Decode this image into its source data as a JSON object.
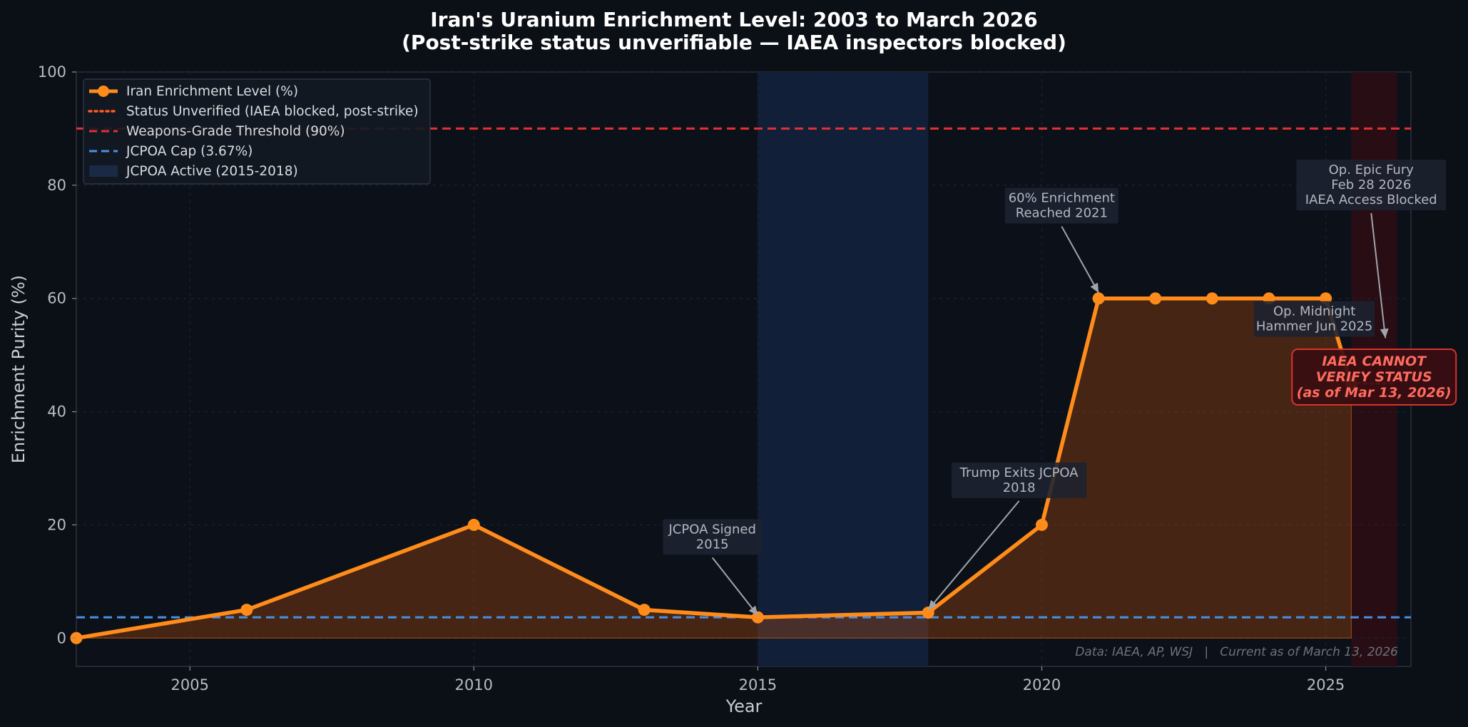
{
  "chart_data": {
    "type": "line",
    "title_line1": "Iran's Uranium Enrichment Level: 2003 to March 2026",
    "title_line2": "(Post-strike status unverifiable — IAEA inspectors blocked)",
    "xlabel": "Year",
    "ylabel": "Enrichment Purity (%)",
    "xlim": [
      2003,
      2026.5
    ],
    "ylim": [
      -5,
      100
    ],
    "x_ticks": [
      2005,
      2010,
      2015,
      2020,
      2025
    ],
    "y_ticks": [
      0,
      20,
      40,
      60,
      80,
      100
    ],
    "grid": true,
    "legend_position": "top-left",
    "series": [
      {
        "name": "Iran Enrichment Level (%)",
        "color": "#ff8c1a",
        "x": [
          2003,
          2006,
          2010,
          2013,
          2015,
          2018,
          2020,
          2021,
          2022,
          2023,
          2024,
          2025,
          2025.45
        ],
        "y": [
          0,
          5,
          20,
          5,
          3.67,
          4.5,
          20,
          60,
          60,
          60,
          60,
          60,
          45
        ]
      },
      {
        "name": "Status Unverified (IAEA blocked, post-strike)",
        "color": "#ff5a1f",
        "x": [
          2025.45,
          2026.2
        ],
        "y": [
          45,
          45
        ]
      }
    ],
    "reference_lines": [
      {
        "name": "Weapons-Grade Threshold (90%)",
        "y": 90,
        "color": "#e03131"
      },
      {
        "name": "JCPOA Cap (3.67%)",
        "y": 3.67,
        "color": "#4a90e2"
      }
    ],
    "shaded_regions": [
      {
        "name": "JCPOA Active (2015-2018)",
        "x_start": 2015,
        "x_end": 2018,
        "color": "#12213a"
      },
      {
        "name": "",
        "x_start": 2025.45,
        "x_end": 2026.25,
        "color": "#2a0e14"
      }
    ],
    "legend": [
      {
        "label": "Iran Enrichment Level (%)",
        "style": "line-marker",
        "color": "#ff8c1a"
      },
      {
        "label": "Status Unverified (IAEA blocked, post-strike)",
        "style": "dotted",
        "color": "#ff5a1f"
      },
      {
        "label": "Weapons-Grade Threshold (90%)",
        "style": "dashed",
        "color": "#e03131"
      },
      {
        "label": "JCPOA Cap (3.67%)",
        "style": "dashed",
        "color": "#4a90e2"
      },
      {
        "label": "JCPOA Active (2015-2018)",
        "style": "patch",
        "color": "#1a2a44"
      }
    ],
    "annotations": [
      {
        "lines": [
          "JCPOA Signed",
          "2015"
        ],
        "text_at": [
          2014.2,
          18.5
        ],
        "arrow_to": [
          2015,
          4
        ]
      },
      {
        "lines": [
          "Trump Exits JCPOA",
          "2018"
        ],
        "text_at": [
          2019.6,
          28.5
        ],
        "arrow_to": [
          2018,
          5
        ]
      },
      {
        "lines": [
          "60% Enrichment",
          "Reached 2021"
        ],
        "text_at": [
          2020.35,
          77
        ],
        "arrow_to": [
          2021,
          61
        ]
      },
      {
        "lines": [
          "Op. Midnight",
          "Hammer Jun 2025"
        ],
        "text_at": [
          2024.8,
          57
        ],
        "arrow_to": null
      },
      {
        "lines": [
          "Op. Epic Fury",
          "Feb 28 2026",
          "IAEA Access Blocked"
        ],
        "text_at": [
          2025.8,
          82
        ],
        "arrow_to": [
          2026.05,
          53
        ]
      }
    ],
    "warning": {
      "lines": [
        "IAEA CANNOT",
        "VERIFY STATUS",
        "(as of Mar 13, 2026)"
      ],
      "at": [
        2025.85,
        48.5
      ]
    },
    "source_note": "Data: IAEA, AP, WSJ   |   Current as of March 13, 2026"
  }
}
